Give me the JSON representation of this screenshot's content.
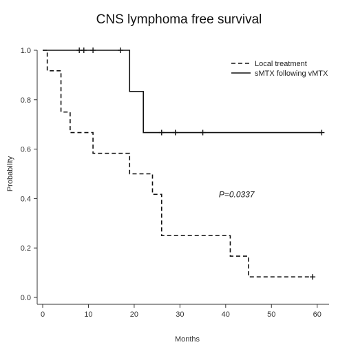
{
  "chart_data": {
    "type": "line",
    "title": "CNS lymphoma free survival",
    "xlabel": "Months",
    "ylabel": "Probability",
    "xlim": [
      0,
      62
    ],
    "ylim": [
      0,
      1.0
    ],
    "x_ticks": [
      0,
      10,
      20,
      30,
      40,
      50,
      60
    ],
    "x_tick_labels": [
      "0",
      "10",
      "20",
      "30",
      "40",
      "50",
      "60"
    ],
    "y_ticks": [
      0.0,
      0.2,
      0.4,
      0.6,
      0.8,
      1.0
    ],
    "y_tick_labels": [
      "0.0",
      "0.2",
      "0.4",
      "0.6",
      "0.8",
      "1.0"
    ],
    "grid": false,
    "legend_position": "top-right",
    "annotation": "P=0.0337",
    "series": [
      {
        "name": "Local treatment",
        "line_style": "dashed",
        "steps": [
          [
            0,
            1.0
          ],
          [
            1,
            0.917
          ],
          [
            4,
            0.75
          ],
          [
            6,
            0.667
          ],
          [
            11,
            0.583
          ],
          [
            19,
            0.5
          ],
          [
            24,
            0.417
          ],
          [
            26,
            0.25
          ],
          [
            41,
            0.167
          ],
          [
            45,
            0.083
          ],
          [
            59,
            0.083
          ]
        ],
        "censored": [
          [
            59,
            0.083
          ]
        ]
      },
      {
        "name": "sMTX following vMTX",
        "line_style": "solid",
        "steps": [
          [
            0,
            1.0
          ],
          [
            19,
            0.833
          ],
          [
            22,
            0.667
          ],
          [
            61,
            0.667
          ]
        ],
        "censored": [
          [
            8,
            1.0
          ],
          [
            9,
            1.0
          ],
          [
            11,
            1.0
          ],
          [
            17,
            1.0
          ],
          [
            26,
            0.667
          ],
          [
            29,
            0.667
          ],
          [
            35,
            0.667
          ],
          [
            61,
            0.667
          ]
        ]
      }
    ]
  }
}
